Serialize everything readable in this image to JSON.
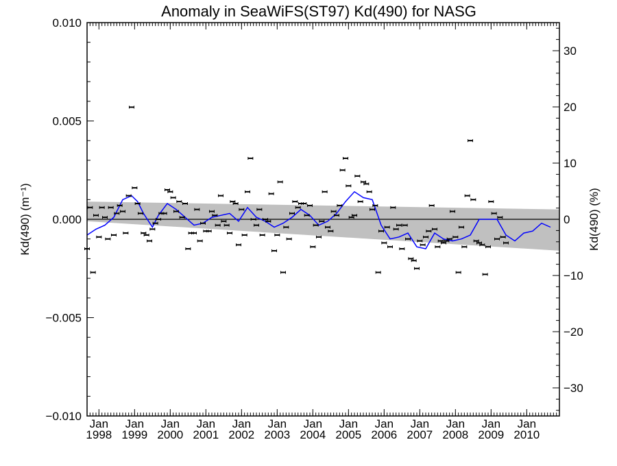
{
  "chart_data": {
    "type": "scatter",
    "title": "Anomaly in SeaWiFS(ST97) Kd(490) for NASG",
    "ylabel": "Kd(490) (m⁻¹)",
    "ylabel_right": "Kd(490) (%)",
    "xlim": [
      "1997-09",
      "2010-12"
    ],
    "ylim": [
      -0.01,
      0.01
    ],
    "ylim_right": [
      -35,
      35
    ],
    "x_ticks": [
      {
        "date": "1998-01",
        "month": "Jan",
        "year": "1998"
      },
      {
        "date": "1999-01",
        "month": "Jan",
        "year": "1999"
      },
      {
        "date": "2000-01",
        "month": "Jan",
        "year": "2000"
      },
      {
        "date": "2001-01",
        "month": "Jan",
        "year": "2001"
      },
      {
        "date": "2002-01",
        "month": "Jan",
        "year": "2002"
      },
      {
        "date": "2003-01",
        "month": "Jan",
        "year": "2003"
      },
      {
        "date": "2004-01",
        "month": "Jan",
        "year": "2004"
      },
      {
        "date": "2005-01",
        "month": "Jan",
        "year": "2005"
      },
      {
        "date": "2006-01",
        "month": "Jan",
        "year": "2006"
      },
      {
        "date": "2007-01",
        "month": "Jan",
        "year": "2007"
      },
      {
        "date": "2008-01",
        "month": "Jan",
        "year": "2008"
      },
      {
        "date": "2009-01",
        "month": "Jan",
        "year": "2009"
      },
      {
        "date": "2010-01",
        "month": "Jan",
        "year": "2010"
      }
    ],
    "y_ticks_left": [
      {
        "value": 0.01,
        "label": "0.010"
      },
      {
        "value": 0.005,
        "label": "0.005"
      },
      {
        "value": 0.0,
        "label": "0.000"
      },
      {
        "value": -0.005,
        "label": "−0.005"
      },
      {
        "value": -0.01,
        "label": "−0.010"
      }
    ],
    "y_ticks_right": [
      {
        "value": 30,
        "label": "30"
      },
      {
        "value": 20,
        "label": "20"
      },
      {
        "value": 10,
        "label": "10"
      },
      {
        "value": 0,
        "label": "0"
      },
      {
        "value": -10,
        "label": "−10"
      },
      {
        "value": -20,
        "label": "−20"
      },
      {
        "value": -30,
        "label": "−30"
      }
    ],
    "grid": false,
    "colors": {
      "points": "#000000",
      "smooth_line": "#0000ff",
      "band": "#c0c0c0",
      "zero_line": "#000000"
    },
    "monthly_anomalies": [
      {
        "date": "1997-09",
        "value": -0.0015
      },
      {
        "date": "1997-10",
        "value": 0.0006
      },
      {
        "date": "1997-11",
        "value": -0.0027
      },
      {
        "date": "1997-12",
        "value": 0.0002
      },
      {
        "date": "1998-01",
        "value": -0.0009
      },
      {
        "date": "1998-02",
        "value": 0.0006
      },
      {
        "date": "1998-03",
        "value": 0.0001
      },
      {
        "date": "1998-04",
        "value": -0.001
      },
      {
        "date": "1998-05",
        "value": 0.0006
      },
      {
        "date": "1998-06",
        "value": -0.0008
      },
      {
        "date": "1998-07",
        "value": 0.0003
      },
      {
        "date": "1998-08",
        "value": 0.0007
      },
      {
        "date": "1998-09",
        "value": 0.0004
      },
      {
        "date": "1998-10",
        "value": -0.0007
      },
      {
        "date": "1998-11",
        "value": 0.0012
      },
      {
        "date": "1998-12",
        "value": 0.0057
      },
      {
        "date": "1999-01",
        "value": 0.0016
      },
      {
        "date": "1999-02",
        "value": 0.0008
      },
      {
        "date": "1999-03",
        "value": 0.0003
      },
      {
        "date": "1999-04",
        "value": -0.0007
      },
      {
        "date": "1999-05",
        "value": -0.0008
      },
      {
        "date": "1999-06",
        "value": -0.0011
      },
      {
        "date": "1999-07",
        "value": -0.0005
      },
      {
        "date": "1999-08",
        "value": -0.0002
      },
      {
        "date": "1999-09",
        "value": 0.0
      },
      {
        "date": "1999-10",
        "value": 0.0003
      },
      {
        "date": "1999-11",
        "value": 0.0003
      },
      {
        "date": "1999-12",
        "value": 0.0015
      },
      {
        "date": "2000-01",
        "value": 0.0014
      },
      {
        "date": "2000-02",
        "value": 0.0011
      },
      {
        "date": "2000-03",
        "value": 0.0004
      },
      {
        "date": "2000-04",
        "value": 0.0009
      },
      {
        "date": "2000-05",
        "value": 0.0001
      },
      {
        "date": "2000-06",
        "value": 0.0008
      },
      {
        "date": "2000-07",
        "value": -0.0015
      },
      {
        "date": "2000-08",
        "value": -0.0007
      },
      {
        "date": "2000-09",
        "value": -0.0007
      },
      {
        "date": "2000-10",
        "value": 0.0005
      },
      {
        "date": "2000-11",
        "value": -0.0011
      },
      {
        "date": "2000-12",
        "value": -0.0002
      },
      {
        "date": "2001-01",
        "value": -0.0006
      },
      {
        "date": "2001-02",
        "value": -0.0006
      },
      {
        "date": "2001-03",
        "value": 0.0004
      },
      {
        "date": "2001-04",
        "value": 0.0002
      },
      {
        "date": "2001-05",
        "value": -0.0003
      },
      {
        "date": "2001-06",
        "value": 0.0012
      },
      {
        "date": "2001-07",
        "value": -0.0001
      },
      {
        "date": "2001-08",
        "value": -0.0003
      },
      {
        "date": "2001-09",
        "value": -0.0007
      },
      {
        "date": "2001-10",
        "value": 0.0009
      },
      {
        "date": "2001-11",
        "value": 0.0008
      },
      {
        "date": "2001-12",
        "value": -0.0013
      },
      {
        "date": "2002-01",
        "value": 0.0005
      },
      {
        "date": "2002-02",
        "value": -0.0008
      },
      {
        "date": "2002-03",
        "value": 0.0014
      },
      {
        "date": "2002-04",
        "value": 0.0031
      },
      {
        "date": "2002-05",
        "value": 0.0
      },
      {
        "date": "2002-06",
        "value": -0.0003
      },
      {
        "date": "2002-07",
        "value": 0.0005
      },
      {
        "date": "2002-08",
        "value": -0.0008
      },
      {
        "date": "2002-09",
        "value": 0.0
      },
      {
        "date": "2002-10",
        "value": -0.0001
      },
      {
        "date": "2002-11",
        "value": 0.0013
      },
      {
        "date": "2002-12",
        "value": -0.0016
      },
      {
        "date": "2003-01",
        "value": -0.0008
      },
      {
        "date": "2003-02",
        "value": 0.0019
      },
      {
        "date": "2003-03",
        "value": -0.0027
      },
      {
        "date": "2003-04",
        "value": -0.0004
      },
      {
        "date": "2003-05",
        "value": -0.001
      },
      {
        "date": "2003-06",
        "value": 0.0003
      },
      {
        "date": "2003-07",
        "value": 0.0009
      },
      {
        "date": "2003-08",
        "value": 0.0006
      },
      {
        "date": "2003-09",
        "value": 0.0008
      },
      {
        "date": "2003-10",
        "value": 0.0008
      },
      {
        "date": "2003-11",
        "value": 0.0002
      },
      {
        "date": "2003-12",
        "value": 0.0007
      },
      {
        "date": "2004-01",
        "value": -0.0014
      },
      {
        "date": "2004-02",
        "value": -0.0003
      },
      {
        "date": "2004-03",
        "value": -0.0009
      },
      {
        "date": "2004-04",
        "value": -0.0001
      },
      {
        "date": "2004-05",
        "value": 0.0014
      },
      {
        "date": "2004-06",
        "value": -0.0004
      },
      {
        "date": "2004-07",
        "value": -0.0006
      },
      {
        "date": "2004-08",
        "value": 0.0004
      },
      {
        "date": "2004-09",
        "value": 0.0002
      },
      {
        "date": "2004-10",
        "value": 0.0007
      },
      {
        "date": "2004-11",
        "value": 0.0025
      },
      {
        "date": "2004-12",
        "value": 0.0031
      },
      {
        "date": "2005-01",
        "value": 0.0017
      },
      {
        "date": "2005-02",
        "value": 0.0001
      },
      {
        "date": "2005-03",
        "value": 0.0002
      },
      {
        "date": "2005-04",
        "value": 0.0022
      },
      {
        "date": "2005-05",
        "value": 0.0009
      },
      {
        "date": "2005-06",
        "value": 0.0019
      },
      {
        "date": "2005-07",
        "value": 0.0018
      },
      {
        "date": "2005-08",
        "value": 0.0014
      },
      {
        "date": "2005-09",
        "value": 0.0005
      },
      {
        "date": "2005-10",
        "value": 0.0007
      },
      {
        "date": "2005-11",
        "value": -0.0027
      },
      {
        "date": "2005-12",
        "value": -0.0006
      },
      {
        "date": "2006-01",
        "value": -0.0012
      },
      {
        "date": "2006-02",
        "value": -0.0004
      },
      {
        "date": "2006-03",
        "value": -0.0014
      },
      {
        "date": "2006-04",
        "value": 0.0006
      },
      {
        "date": "2006-05",
        "value": -0.0005
      },
      {
        "date": "2006-06",
        "value": -0.0003
      },
      {
        "date": "2006-07",
        "value": -0.0015
      },
      {
        "date": "2006-08",
        "value": -0.0003
      },
      {
        "date": "2006-09",
        "value": -0.001
      },
      {
        "date": "2006-10",
        "value": -0.002
      },
      {
        "date": "2006-11",
        "value": -0.0021
      },
      {
        "date": "2006-12",
        "value": -0.0025
      },
      {
        "date": "2007-01",
        "value": -0.0011
      },
      {
        "date": "2007-02",
        "value": -0.0013
      },
      {
        "date": "2007-03",
        "value": -0.0009
      },
      {
        "date": "2007-04",
        "value": -0.0006
      },
      {
        "date": "2007-05",
        "value": 0.0007
      },
      {
        "date": "2007-06",
        "value": -0.0005
      },
      {
        "date": "2007-07",
        "value": -0.0014
      },
      {
        "date": "2007-08",
        "value": -0.0011
      },
      {
        "date": "2007-09",
        "value": -0.0012
      },
      {
        "date": "2007-10",
        "value": -0.0011
      },
      {
        "date": "2007-11",
        "value": -0.001
      },
      {
        "date": "2007-12",
        "value": 0.0004
      },
      {
        "date": "2008-01",
        "value": -0.0009
      },
      {
        "date": "2008-02",
        "value": -0.0027
      },
      {
        "date": "2008-03",
        "value": -0.0004
      },
      {
        "date": "2008-04",
        "value": -0.0014
      },
      {
        "date": "2008-05",
        "value": 0.0012
      },
      {
        "date": "2008-06",
        "value": 0.004
      },
      {
        "date": "2008-07",
        "value": 0.001
      },
      {
        "date": "2008-08",
        "value": -0.0011
      },
      {
        "date": "2008-09",
        "value": -0.0012
      },
      {
        "date": "2008-10",
        "value": -0.0013
      },
      {
        "date": "2008-11",
        "value": -0.0028
      },
      {
        "date": "2008-12",
        "value": -0.0014
      },
      {
        "date": "2009-01",
        "value": 0.0009
      },
      {
        "date": "2009-02",
        "value": 0.0003
      },
      {
        "date": "2009-03",
        "value": -0.001
      },
      {
        "date": "2009-04",
        "value": 0.0001
      },
      {
        "date": "2009-05",
        "value": -0.0009
      },
      {
        "date": "2009-06",
        "value": -0.0012
      }
    ],
    "smoothed_series": [
      {
        "date": "1997-09",
        "value": -0.0008
      },
      {
        "date": "1997-12",
        "value": -0.0005
      },
      {
        "date": "1998-03",
        "value": -0.0003
      },
      {
        "date": "1998-06",
        "value": 0.0001
      },
      {
        "date": "1998-09",
        "value": 0.001
      },
      {
        "date": "1998-12",
        "value": 0.0012
      },
      {
        "date": "1999-02",
        "value": 0.0009
      },
      {
        "date": "1999-04",
        "value": 0.0003
      },
      {
        "date": "1999-07",
        "value": -0.0004
      },
      {
        "date": "1999-09",
        "value": 0.0002
      },
      {
        "date": "1999-12",
        "value": 0.0008
      },
      {
        "date": "2000-03",
        "value": 0.0005
      },
      {
        "date": "2000-06",
        "value": 0.0001
      },
      {
        "date": "2000-09",
        "value": -0.0003
      },
      {
        "date": "2000-12",
        "value": -0.0002
      },
      {
        "date": "2001-03",
        "value": 0.0001
      },
      {
        "date": "2001-06",
        "value": 0.0002
      },
      {
        "date": "2001-09",
        "value": 0.0003
      },
      {
        "date": "2001-12",
        "value": -0.0001
      },
      {
        "date": "2002-03",
        "value": 0.0006
      },
      {
        "date": "2002-06",
        "value": 0.0001
      },
      {
        "date": "2002-09",
        "value": -0.0001
      },
      {
        "date": "2002-12",
        "value": -0.0004
      },
      {
        "date": "2003-03",
        "value": -0.0002
      },
      {
        "date": "2003-06",
        "value": 0.0001
      },
      {
        "date": "2003-09",
        "value": 0.0005
      },
      {
        "date": "2003-12",
        "value": 0.0002
      },
      {
        "date": "2004-03",
        "value": -0.0003
      },
      {
        "date": "2004-06",
        "value": -0.0001
      },
      {
        "date": "2004-09",
        "value": 0.0003
      },
      {
        "date": "2004-12",
        "value": 0.0009
      },
      {
        "date": "2005-03",
        "value": 0.0014
      },
      {
        "date": "2005-06",
        "value": 0.0011
      },
      {
        "date": "2005-09",
        "value": 0.001
      },
      {
        "date": "2005-12",
        "value": -0.0003
      },
      {
        "date": "2006-03",
        "value": -0.001
      },
      {
        "date": "2006-06",
        "value": -0.0009
      },
      {
        "date": "2006-09",
        "value": -0.0007
      },
      {
        "date": "2006-12",
        "value": -0.0014
      },
      {
        "date": "2007-03",
        "value": -0.0015
      },
      {
        "date": "2007-06",
        "value": -0.0007
      },
      {
        "date": "2007-09",
        "value": -0.001
      },
      {
        "date": "2007-12",
        "value": -0.0011
      },
      {
        "date": "2008-03",
        "value": -0.001
      },
      {
        "date": "2008-06",
        "value": -0.0008
      },
      {
        "date": "2008-09",
        "value": 0.0
      },
      {
        "date": "2008-12",
        "value": 0.0
      },
      {
        "date": "2009-03",
        "value": 0.0
      },
      {
        "date": "2009-06",
        "value": -0.0008
      },
      {
        "date": "2009-09",
        "value": -0.0011
      },
      {
        "date": "2009-12",
        "value": -0.0007
      },
      {
        "date": "2010-03",
        "value": -0.0006
      },
      {
        "date": "2010-06",
        "value": -0.0002
      },
      {
        "date": "2010-09",
        "value": -0.0004
      }
    ],
    "trend_band": {
      "start": {
        "date": "1997-09",
        "lower": -0.0001,
        "upper": 0.0009
      },
      "end": {
        "date": "2010-12",
        "lower": -0.0016,
        "upper": 0.0005
      }
    }
  }
}
